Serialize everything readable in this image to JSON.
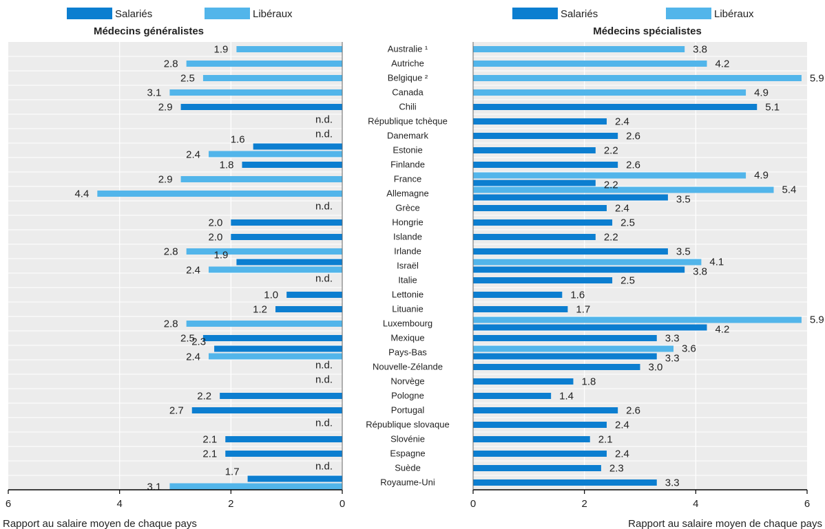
{
  "colors": {
    "salaries": "#0c7ed0",
    "liberaux": "#52b5ea",
    "panel_bg": "#ececec",
    "grid": "#ffffff",
    "axis": "#000000",
    "text": "#222222"
  },
  "chart_data": {
    "type": "bar",
    "orientation": "horizontal",
    "countries": [
      "Australie ¹",
      "Autriche",
      "Belgique ²",
      "Canada",
      "Chili",
      "République tchèque",
      "Danemark",
      "Estonie",
      "Finlande",
      "France",
      "Allemagne",
      "Grèce",
      "Hongrie",
      "Islande",
      "Irlande",
      "Israël",
      "Italie",
      "Lettonie",
      "Lituanie",
      "Luxembourg",
      "Mexique",
      "Pays-Bas",
      "Nouvelle-Zélande",
      "Norvège",
      "Pologne",
      "Portugal",
      "République slovaque",
      "Slovénie",
      "Espagne",
      "Suède",
      "Royaume-Uni"
    ],
    "series_names": [
      "Salariés",
      "Libéraux"
    ],
    "missing_label": "n.d.",
    "x_tick_labels": [
      "0",
      "2",
      "4",
      "6"
    ],
    "xlabel": "Rapport au salaire moyen de chaque pays",
    "grid": true,
    "legend_position": "top",
    "panels": [
      {
        "title": "Médecins généralistes",
        "direction": "reversed",
        "xlim": [
          0,
          6
        ],
        "salaries": [
          null,
          null,
          null,
          null,
          2.9,
          null,
          null,
          1.6,
          1.8,
          null,
          null,
          null,
          2.0,
          2.0,
          null,
          1.9,
          null,
          1.0,
          1.2,
          null,
          2.5,
          2.3,
          null,
          null,
          2.2,
          2.7,
          null,
          2.1,
          2.1,
          null,
          1.7
        ],
        "liberaux": [
          1.9,
          2.8,
          2.5,
          3.1,
          null,
          null,
          null,
          2.4,
          null,
          2.9,
          4.4,
          null,
          null,
          null,
          2.8,
          2.4,
          null,
          null,
          null,
          2.8,
          null,
          2.4,
          null,
          null,
          null,
          null,
          null,
          null,
          null,
          null,
          3.1
        ],
        "na": [
          false,
          false,
          false,
          false,
          false,
          true,
          true,
          false,
          false,
          false,
          false,
          true,
          false,
          false,
          false,
          false,
          true,
          false,
          false,
          false,
          false,
          false,
          true,
          true,
          false,
          false,
          true,
          false,
          false,
          true,
          false
        ]
      },
      {
        "title": "Médecins spécialistes",
        "direction": "normal",
        "xlim": [
          0,
          6
        ],
        "salaries": [
          null,
          null,
          null,
          null,
          5.1,
          2.4,
          2.6,
          2.2,
          2.6,
          2.2,
          3.5,
          2.4,
          2.5,
          2.2,
          3.5,
          3.8,
          2.5,
          1.6,
          1.7,
          4.2,
          3.3,
          3.3,
          3.0,
          1.8,
          1.4,
          2.6,
          2.4,
          2.1,
          2.4,
          2.3,
          3.3
        ],
        "liberaux": [
          3.8,
          4.2,
          5.9,
          4.9,
          null,
          null,
          null,
          null,
          null,
          4.9,
          5.4,
          null,
          null,
          null,
          null,
          4.1,
          null,
          null,
          null,
          5.9,
          null,
          3.6,
          null,
          null,
          null,
          null,
          null,
          null,
          null,
          null,
          null
        ],
        "na": []
      }
    ]
  }
}
